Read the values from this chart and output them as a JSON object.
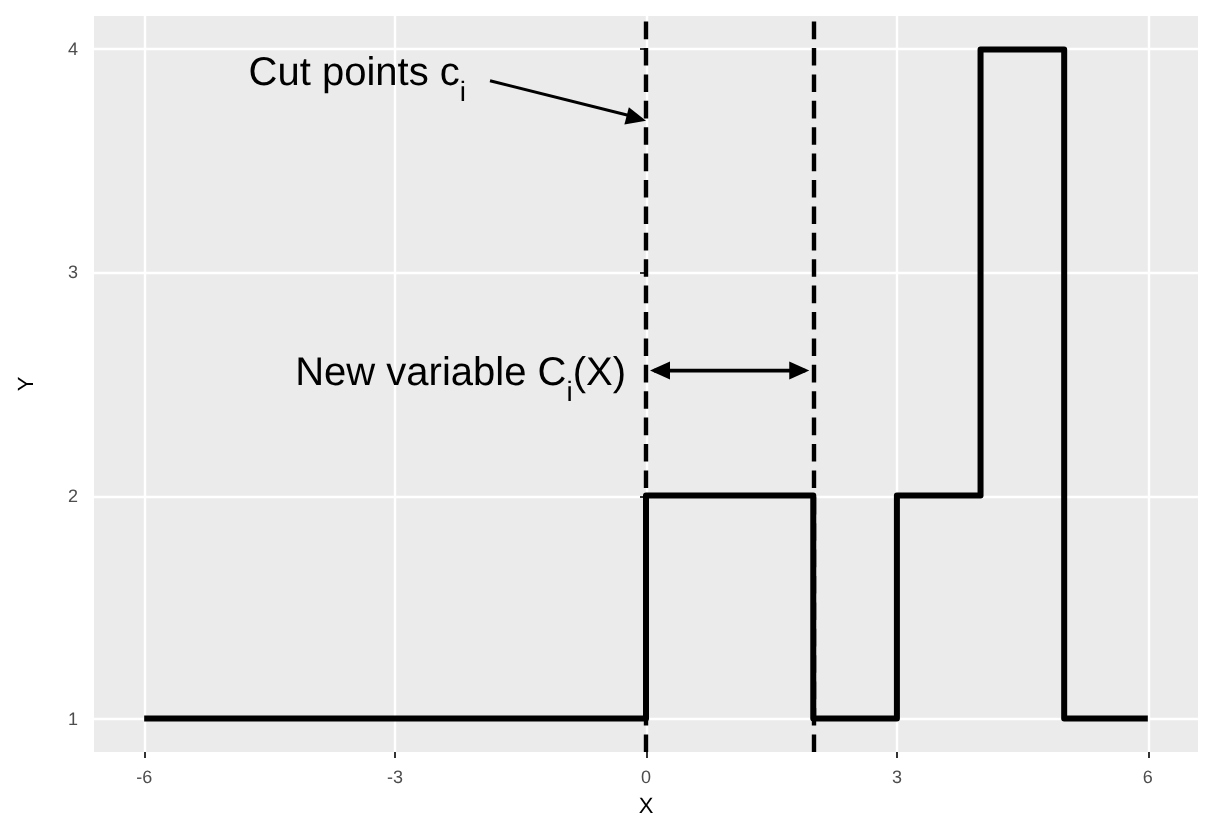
{
  "chart_data": {
    "type": "step",
    "xlabel": "X",
    "ylabel": "Y",
    "x": [
      -6,
      0,
      2,
      3,
      4,
      5,
      6
    ],
    "series": [
      {
        "color": "#000000",
        "values": [
          1,
          2,
          1,
          2,
          4,
          1,
          1
        ]
      }
    ],
    "xlim": [
      -6.6,
      6.6
    ],
    "xticks": [
      -6,
      -3,
      0,
      3,
      6
    ],
    "ylim": [
      0.85,
      4.15
    ],
    "yticks": [
      1,
      2,
      3,
      4
    ],
    "grid": true,
    "marker": "none",
    "line_style": "solid",
    "ref_lines": [
      {
        "axis": "x",
        "value": 0,
        "label": null,
        "color": "#000000",
        "line_style": "dashed"
      },
      {
        "axis": "x",
        "value": 2,
        "label": null,
        "color": "#000000",
        "line_style": "dashed"
      }
    ],
    "annotations": [
      {
        "text": "Cut points c$_{i}$",
        "x": 0,
        "y": 3.68
      },
      {
        "text": "New variable C$_{i}$(X)",
        "x": 0,
        "y": 2.56
      }
    ]
  }
}
